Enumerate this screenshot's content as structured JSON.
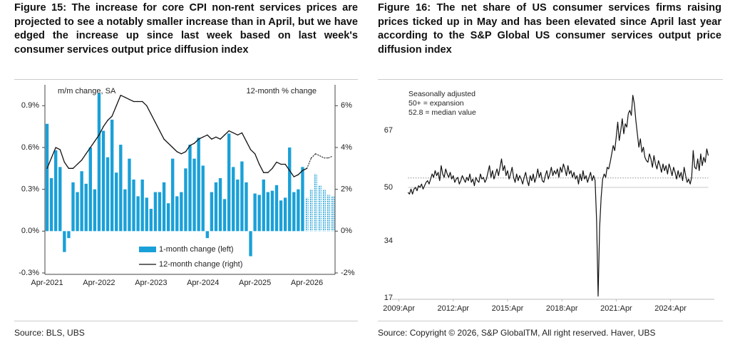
{
  "chart_data": [
    {
      "type": "bar",
      "title": "Figure 15: The increase for core CPI non-rent services prices are projected to see a notably smaller increase than in April, but we have edged the increase up since last week based on last week's consumer services output price diffusion index",
      "source": "Source: BLS, UBS",
      "y_label": "m/m change, SA",
      "y2_label": "12-month % change",
      "categories": [
        "Apr-2021",
        null,
        null,
        null,
        null,
        null,
        null,
        null,
        null,
        null,
        null,
        null,
        "Apr-2022",
        null,
        null,
        null,
        null,
        null,
        null,
        null,
        null,
        null,
        null,
        null,
        "Apr-2023",
        null,
        null,
        null,
        null,
        null,
        null,
        null,
        null,
        null,
        null,
        null,
        "Apr-2024",
        null,
        null,
        null,
        null,
        null,
        null,
        null,
        null,
        null,
        null,
        null,
        "Apr-2025",
        null,
        null,
        null,
        null,
        null,
        null,
        null,
        null,
        null,
        null,
        null,
        "Apr-2026",
        null,
        null,
        null,
        null,
        null,
        null
      ],
      "forecast_start": 60,
      "series": [
        {
          "name": "1-month change (left)",
          "type": "bar",
          "color": "#1aa0d8",
          "values": [
            0.77,
            0.38,
            0.58,
            0.46,
            -0.15,
            -0.05,
            0.35,
            0.28,
            0.43,
            0.34,
            0.6,
            0.3,
            0.99,
            0.72,
            0.53,
            0.8,
            0.42,
            0.62,
            0.3,
            0.52,
            0.37,
            0.25,
            0.37,
            0.24,
            0.16,
            0.28,
            0.28,
            0.35,
            0.2,
            0.52,
            0.25,
            0.28,
            0.45,
            0.62,
            0.52,
            0.67,
            0.47,
            -0.05,
            0.28,
            0.35,
            0.38,
            0.23,
            0.7,
            0.46,
            0.37,
            0.5,
            0.35,
            -0.18,
            0.27,
            0.26,
            0.37,
            0.28,
            0.29,
            0.33,
            0.22,
            0.24,
            0.6,
            0.28,
            0.3,
            0.46,
            0.24,
            0.3,
            0.41,
            0.33,
            0.3,
            0.26,
            0.25
          ]
        },
        {
          "name": "12-month change (right)",
          "type": "line",
          "axis": "y2",
          "color": "#111111",
          "values": [
            3.0,
            3.5,
            4.0,
            3.9,
            3.3,
            3.0,
            3.0,
            3.2,
            3.4,
            3.7,
            4.0,
            4.3,
            4.6,
            5.0,
            5.3,
            5.5,
            6.0,
            6.5,
            6.4,
            6.3,
            6.2,
            6.2,
            6.2,
            6.0,
            5.6,
            5.2,
            4.8,
            4.4,
            4.2,
            4.0,
            3.8,
            3.7,
            3.8,
            4.1,
            4.2,
            4.4,
            4.5,
            4.6,
            4.4,
            4.5,
            4.4,
            4.6,
            4.8,
            4.7,
            4.6,
            4.7,
            4.3,
            3.9,
            3.7,
            3.2,
            2.8,
            2.8,
            3.0,
            3.3,
            3.2,
            3.2,
            2.9,
            2.6,
            2.7,
            2.9,
            3.0,
            3.5,
            3.7,
            3.6,
            3.5,
            3.5,
            3.6
          ]
        }
      ],
      "ylim": [
        -0.3,
        1.05
      ],
      "yticks": [
        {
          "value": -0.3,
          "label": "-0.3%"
        },
        {
          "value": 0,
          "label": "0.0%"
        },
        {
          "value": 0.3,
          "label": "0.3%"
        },
        {
          "value": 0.6,
          "label": "0.6%"
        },
        {
          "value": 0.9,
          "label": "0.9%"
        }
      ],
      "y2lim": [
        -2,
        7
      ],
      "y2ticks": [
        {
          "value": -2,
          "label": "-2%"
        },
        {
          "value": 0,
          "label": "0%"
        },
        {
          "value": 2,
          "label": "2%"
        },
        {
          "value": 4,
          "label": "4%"
        },
        {
          "value": 6,
          "label": "6%"
        }
      ],
      "legend": "bottom"
    },
    {
      "type": "line",
      "title": "Figure 16: The net share of US consumer services firms raising prices ticked up in May and has been elevated since April last year according to the S&P Global US consumer services output price diffusion index",
      "source": "Source: Copyright © 2026, S&P GlobalTM, All right reserved. Haver, UBS",
      "annotations": [
        "Seasonally adjusted",
        "50+ = expansion",
        "52.8 = median value"
      ],
      "reference_lines": [
        {
          "value": 50,
          "style": "solid",
          "color": "#c8c8c8"
        },
        {
          "value": 52.8,
          "style": "dotted",
          "color": "#8a8a8a"
        }
      ],
      "color": "#111111",
      "x": [
        "2009-10",
        "2009-11",
        "2009-12",
        "2010-01",
        "2010-02",
        "2010-03",
        "2010-04",
        "2010-05",
        "2010-06",
        "2010-07",
        "2010-08",
        "2010-09",
        "2010-10",
        "2010-11",
        "2010-12",
        "2011-01",
        "2011-02",
        "2011-03",
        "2011-04",
        "2011-05",
        "2011-06",
        "2011-07",
        "2011-08",
        "2011-09",
        "2011-10",
        "2011-11",
        "2011-12",
        "2012-01",
        "2012-02",
        "2012-03",
        "2012-04",
        "2012-05",
        "2012-06",
        "2012-07",
        "2012-08",
        "2012-09",
        "2012-10",
        "2012-11",
        "2012-12",
        "2013-01",
        "2013-02",
        "2013-03",
        "2013-04",
        "2013-05",
        "2013-06",
        "2013-07",
        "2013-08",
        "2013-09",
        "2013-10",
        "2013-11",
        "2013-12",
        "2014-01",
        "2014-02",
        "2014-03",
        "2014-04",
        "2014-05",
        "2014-06",
        "2014-07",
        "2014-08",
        "2014-09",
        "2014-10",
        "2014-11",
        "2014-12",
        "2015-01",
        "2015-02",
        "2015-03",
        "2015-04",
        "2015-05",
        "2015-06",
        "2015-07",
        "2015-08",
        "2015-09",
        "2015-10",
        "2015-11",
        "2015-12",
        "2016-01",
        "2016-02",
        "2016-03",
        "2016-04",
        "2016-05",
        "2016-06",
        "2016-07",
        "2016-08",
        "2016-09",
        "2016-10",
        "2016-11",
        "2016-12",
        "2017-01",
        "2017-02",
        "2017-03",
        "2017-04",
        "2017-05",
        "2017-06",
        "2017-07",
        "2017-08",
        "2017-09",
        "2017-10",
        "2017-11",
        "2017-12",
        "2018-01",
        "2018-02",
        "2018-03",
        "2018-04",
        "2018-05",
        "2018-06",
        "2018-07",
        "2018-08",
        "2018-09",
        "2018-10",
        "2018-11",
        "2018-12",
        "2019-01",
        "2019-02",
        "2019-03",
        "2019-04",
        "2019-05",
        "2019-06",
        "2019-07",
        "2019-08",
        "2019-09",
        "2019-10",
        "2019-11",
        "2019-12",
        "2020-01",
        "2020-02",
        "2020-03",
        "2020-04",
        "2020-05",
        "2020-06",
        "2020-07",
        "2020-08",
        "2020-09",
        "2020-10",
        "2020-11",
        "2020-12",
        "2021-01",
        "2021-02",
        "2021-03",
        "2021-04",
        "2021-05",
        "2021-06",
        "2021-07",
        "2021-08",
        "2021-09",
        "2021-10",
        "2021-11",
        "2021-12",
        "2022-01",
        "2022-02",
        "2022-03",
        "2022-04",
        "2022-05",
        "2022-06",
        "2022-07",
        "2022-08",
        "2022-09",
        "2022-10",
        "2022-11",
        "2022-12",
        "2023-01",
        "2023-02",
        "2023-03",
        "2023-04",
        "2023-05",
        "2023-06",
        "2023-07",
        "2023-08",
        "2023-09",
        "2023-10",
        "2023-11",
        "2023-12",
        "2024-01",
        "2024-02",
        "2024-03",
        "2024-04",
        "2024-05",
        "2024-06",
        "2024-07",
        "2024-08",
        "2024-09",
        "2024-10",
        "2024-11",
        "2024-12",
        "2025-01",
        "2025-02",
        "2025-03",
        "2025-04",
        "2025-05",
        "2025-06",
        "2025-07",
        "2025-08",
        "2025-09",
        "2025-10",
        "2025-11",
        "2025-12",
        "2026-01",
        "2026-02",
        "2026-03",
        "2026-04",
        "2026-05"
      ],
      "values": [
        48.5,
        48.0,
        49.5,
        48.0,
        49.5,
        50.0,
        49.0,
        50.5,
        50.0,
        51.0,
        49.5,
        50.5,
        51.5,
        52.0,
        51.0,
        52.5,
        54.0,
        53.0,
        55.0,
        53.5,
        54.5,
        52.0,
        56.5,
        54.0,
        53.0,
        55.5,
        54.0,
        53.0,
        54.5,
        52.5,
        53.5,
        51.5,
        52.5,
        53.0,
        51.0,
        52.0,
        53.5,
        52.5,
        51.5,
        53.0,
        52.0,
        54.0,
        51.5,
        52.5,
        50.5,
        53.0,
        52.0,
        51.5,
        54.0,
        52.5,
        53.0,
        51.5,
        52.5,
        54.5,
        56.5,
        53.0,
        55.0,
        52.5,
        54.0,
        55.5,
        53.5,
        56.0,
        58.5,
        55.0,
        56.5,
        53.5,
        55.0,
        52.5,
        54.0,
        56.0,
        53.0,
        51.5,
        54.0,
        52.0,
        53.5,
        52.5,
        51.0,
        53.0,
        54.5,
        52.0,
        50.5,
        53.5,
        52.0,
        54.0,
        51.5,
        53.0,
        55.5,
        53.0,
        54.5,
        52.0,
        51.5,
        53.5,
        55.0,
        52.5,
        54.0,
        56.0,
        53.5,
        55.0,
        54.0,
        55.5,
        53.0,
        56.0,
        54.5,
        57.0,
        55.5,
        53.5,
        56.5,
        54.0,
        55.0,
        53.0,
        54.5,
        52.5,
        53.5,
        51.0,
        54.0,
        52.0,
        55.0,
        52.5,
        53.5,
        51.5,
        53.0,
        54.5,
        52.0,
        53.5,
        52.0,
        40.0,
        17.5,
        38.0,
        47.0,
        52.5,
        54.0,
        53.0,
        56.0,
        55.5,
        57.5,
        60.0,
        62.5,
        61.0,
        65.0,
        69.5,
        64.0,
        67.0,
        70.5,
        66.0,
        69.0,
        68.0,
        72.0,
        73.0,
        71.5,
        77.5,
        75.0,
        70.0,
        66.0,
        62.0,
        64.5,
        60.5,
        62.0,
        59.0,
        58.0,
        57.5,
        60.0,
        58.5,
        56.0,
        59.5,
        57.0,
        55.5,
        58.0,
        56.5,
        54.5,
        57.0,
        55.0,
        56.5,
        54.0,
        57.0,
        55.5,
        53.5,
        56.0,
        54.5,
        52.5,
        55.0,
        53.0,
        54.5,
        52.0,
        56.0,
        53.5,
        51.5,
        52.5,
        51.0,
        53.0,
        61.0,
        56.0,
        55.5,
        58.5,
        55.0,
        60.0,
        56.5,
        59.0,
        57.5,
        61.5,
        59.5
      ],
      "xlim": [
        "2008-11",
        "2026-09"
      ],
      "xticks": [
        {
          "value": "2009-04",
          "label": "2009:Apr"
        },
        {
          "value": "2012-04",
          "label": "2012:Apr"
        },
        {
          "value": "2015-04",
          "label": "2015:Apr"
        },
        {
          "value": "2018-04",
          "label": "2018:Apr"
        },
        {
          "value": "2021-04",
          "label": "2021:Apr"
        },
        {
          "value": "2024-04",
          "label": "2024:Apr"
        }
      ],
      "ylim": [
        17,
        80
      ],
      "yticks": [
        17,
        34,
        50,
        67
      ]
    }
  ]
}
